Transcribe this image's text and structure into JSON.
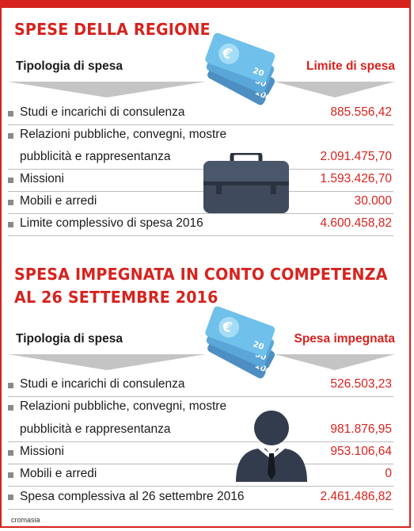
{
  "section1": {
    "title": "SPESE DELLA REGIONE",
    "col_left": "Tipologia di spesa",
    "col_right": "Limite di spesa",
    "rows": [
      {
        "label": "Studi e incarichi di consulenza",
        "value": "885.556,42"
      },
      {
        "label": "Relazioni pubbliche, convegni, mostre",
        "label2": "pubblicità e rappresentanza",
        "value": "2.091.475,70"
      },
      {
        "label": "Missioni",
        "value": "1.593.426,70"
      },
      {
        "label": "Mobili e arredi",
        "value": "30.000"
      },
      {
        "label": "Limite complessivo di spesa 2016",
        "value": "4.600.458,82"
      }
    ]
  },
  "section2": {
    "title_line1": "SPESA IMPEGNATA IN CONTO COMPETENZA",
    "title_line2": "AL 26 SETTEMBRE 2016",
    "col_left": "Tipologia di spesa",
    "col_right": "Spesa impegnata",
    "rows": [
      {
        "label": "Studi e incarichi di consulenza",
        "value": "526.503,23"
      },
      {
        "label": "Relazioni pubbliche, convegni, mostre",
        "label2": "pubblicità e rappresentanza",
        "value": "981.876,95"
      },
      {
        "label": "Missioni",
        "value": "953.106,64"
      },
      {
        "label": "Mobili e arredi",
        "value": "0"
      },
      {
        "label": "Spesa complessiva al 26 settembre 2016",
        "value": "2.461.486,82"
      }
    ]
  },
  "banknotes": {
    "denominations": [
      "20",
      "50",
      "100"
    ],
    "symbol": "€"
  },
  "credit": "cromasia",
  "colors": {
    "accent": "#d6231e",
    "banknote": "#62b6e4",
    "briefcase": "#3f4a5c",
    "person": "#333c4d"
  },
  "icons": [
    "euro-banknotes-icon",
    "briefcase-icon",
    "businessman-icon"
  ]
}
